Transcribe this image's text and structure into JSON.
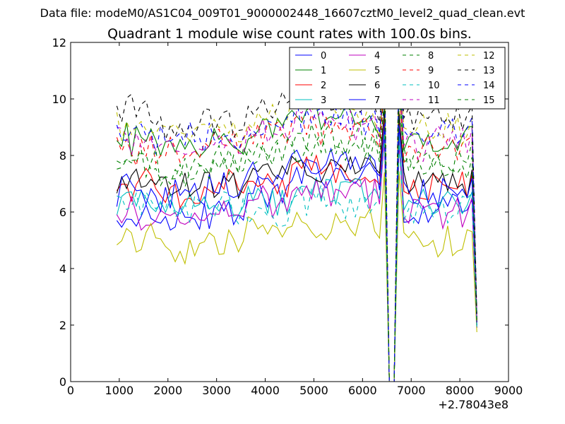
{
  "chart_data": {
    "type": "line",
    "suptitle": "Data file: modeM0/AS1C04_009T01_9000002448_16607cztM0_level2_quad_clean.evt",
    "title": "Quadrant 1 module wise count rates with 100.0s bins.",
    "xlabel": "",
    "ylabel": "",
    "x_offset_label": "+2.78043e8",
    "xlim": [
      0,
      9000
    ],
    "ylim": [
      0,
      12
    ],
    "xticks": [
      0,
      1000,
      2000,
      3000,
      4000,
      5000,
      6000,
      7000,
      8000,
      9000
    ],
    "yticks": [
      0,
      2,
      4,
      6,
      8,
      10,
      12
    ],
    "xtick_labels": [
      "0",
      "1000",
      "2000",
      "3000",
      "4000",
      "5000",
      "6000",
      "7000",
      "8000",
      "9000"
    ],
    "ytick_labels": [
      "0",
      "2",
      "4",
      "6",
      "8",
      "10",
      "12"
    ],
    "x_start": 950,
    "x_step": 100,
    "n_points": 75,
    "gap_points": [
      {
        "index": 56,
        "x": 6550
      },
      {
        "index": 57,
        "x": 6650
      }
    ],
    "legend_position": "top-right",
    "legend_columns": 4,
    "series": [
      {
        "name": "0",
        "color": "#0000ff",
        "style": "solid",
        "baseline": 5.9,
        "recovery": 6.0,
        "end": 1.9,
        "trend": [
          5.9,
          5.8,
          6.0,
          6.6,
          7.4,
          7.3,
          6.6
        ]
      },
      {
        "name": "1",
        "color": "#008000",
        "style": "solid",
        "baseline": 8.4,
        "recovery": 8.5,
        "end": 2.2,
        "trend": [
          8.5,
          8.1,
          8.5,
          8.9,
          9.4,
          9.3,
          8.0
        ]
      },
      {
        "name": "2",
        "color": "#ff0000",
        "style": "solid",
        "baseline": 6.9,
        "recovery": 7.0,
        "end": 2.1,
        "trend": [
          6.9,
          6.6,
          6.9,
          7.2,
          7.6,
          7.3,
          6.7
        ]
      },
      {
        "name": "3",
        "color": "#00bfbf",
        "style": "solid",
        "baseline": 6.2,
        "recovery": 6.3,
        "end": 2.0,
        "trend": [
          6.2,
          6.3,
          6.2,
          6.4,
          6.8,
          6.8,
          6.2
        ]
      },
      {
        "name": "4",
        "color": "#bf00bf",
        "style": "solid",
        "baseline": 6.0,
        "recovery": 6.0,
        "end": 1.9,
        "trend": [
          6.0,
          5.9,
          6.0,
          6.3,
          6.7,
          6.6,
          6.0
        ]
      },
      {
        "name": "5",
        "color": "#bfbf00",
        "style": "solid",
        "baseline": 5.0,
        "recovery": 5.0,
        "end": 1.75,
        "trend": [
          5.1,
          4.8,
          4.9,
          5.5,
          5.6,
          5.6,
          4.8
        ]
      },
      {
        "name": "6",
        "color": "#000000",
        "style": "solid",
        "baseline": 7.0,
        "recovery": 7.1,
        "end": 2.1,
        "trend": [
          7.1,
          6.9,
          7.0,
          7.2,
          7.6,
          7.7,
          7.1
        ]
      },
      {
        "name": "7",
        "color": "#0000ff",
        "style": "solid",
        "baseline": 6.6,
        "recovery": 6.7,
        "end": 2.0,
        "trend": [
          6.8,
          6.6,
          6.9,
          7.3,
          7.8,
          7.8,
          6.5
        ]
      },
      {
        "name": "8",
        "color": "#008000",
        "style": "dashed",
        "baseline": 7.8,
        "recovery": 7.9,
        "end": 2.2,
        "trend": [
          7.9,
          7.6,
          7.9,
          8.1,
          8.6,
          8.5,
          7.8
        ]
      },
      {
        "name": "9",
        "color": "#ff0000",
        "style": "dashed",
        "baseline": 8.3,
        "recovery": 8.3,
        "end": 2.2,
        "trend": [
          8.2,
          8.0,
          8.4,
          8.7,
          9.0,
          8.9,
          8.0
        ]
      },
      {
        "name": "10",
        "color": "#00bfbf",
        "style": "dashed",
        "baseline": 6.2,
        "recovery": 6.2,
        "end": 1.9,
        "trend": [
          6.3,
          6.2,
          6.1,
          6.0,
          6.4,
          6.4,
          6.2
        ]
      },
      {
        "name": "11",
        "color": "#bf00bf",
        "style": "dashed",
        "baseline": 8.4,
        "recovery": 8.4,
        "end": 2.2,
        "trend": [
          8.5,
          8.2,
          8.4,
          8.8,
          9.2,
          9.0,
          8.2
        ]
      },
      {
        "name": "12",
        "color": "#bfbf00",
        "style": "dashed",
        "baseline": 9.0,
        "recovery": 9.0,
        "end": 2.3,
        "trend": [
          9.2,
          8.8,
          9.0,
          9.3,
          9.7,
          9.6,
          8.4
        ]
      },
      {
        "name": "13",
        "color": "#000000",
        "style": "dashed",
        "baseline": 9.2,
        "recovery": 9.3,
        "end": 2.4,
        "trend": [
          9.6,
          9.0,
          9.2,
          9.7,
          10.1,
          10.0,
          8.9
        ]
      },
      {
        "name": "14",
        "color": "#0000ff",
        "style": "dashed",
        "baseline": 8.7,
        "recovery": 8.8,
        "end": 2.3,
        "trend": [
          8.7,
          8.6,
          8.7,
          9.0,
          9.4,
          9.3,
          8.5
        ]
      },
      {
        "name": "15",
        "color": "#008000",
        "style": "dashed",
        "baseline": 7.6,
        "recovery": 7.6,
        "end": 2.1,
        "trend": [
          7.6,
          7.4,
          7.7,
          8.0,
          8.3,
          8.2,
          7.5
        ]
      }
    ]
  }
}
